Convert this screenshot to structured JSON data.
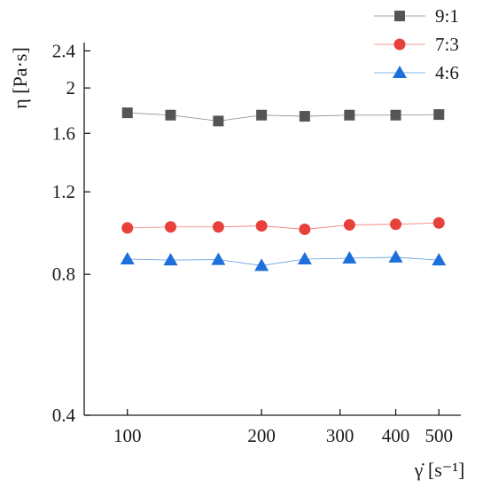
{
  "chart_data": {
    "type": "line",
    "x_scale": "log",
    "y_scale": "log",
    "x": [
      100,
      125,
      160,
      200,
      250,
      315,
      400,
      500
    ],
    "series": [
      {
        "name": "9:1",
        "marker": "square",
        "color": "#555555",
        "values": [
          1.77,
          1.75,
          1.7,
          1.75,
          1.74,
          1.75,
          1.75,
          1.755
        ]
      },
      {
        "name": "7:3",
        "marker": "circle",
        "color": "#e8413c",
        "values": [
          1.005,
          1.01,
          1.01,
          1.015,
          0.998,
          1.02,
          1.023,
          1.03
        ]
      },
      {
        "name": "4:6",
        "marker": "triangle",
        "color": "#1d6fd9",
        "values": [
          0.862,
          0.858,
          0.86,
          0.835,
          0.862,
          0.866,
          0.87,
          0.858
        ]
      }
    ],
    "ylim": [
      0.4,
      2.5
    ],
    "xlim": [
      80,
      560
    ],
    "y_ticks": [
      {
        "value": 0.4,
        "label": "0.4"
      },
      {
        "value": 0.8,
        "label": "0.8"
      },
      {
        "value": 1.2,
        "label": "1.2"
      },
      {
        "value": 1.6,
        "label": "1.6"
      },
      {
        "value": 2.0,
        "label": "2"
      },
      {
        "value": 2.4,
        "label": "2.4"
      }
    ],
    "x_ticks": [
      {
        "value": 100,
        "label": "100"
      },
      {
        "value": 200,
        "label": "200"
      },
      {
        "value": 300,
        "label": "300"
      },
      {
        "value": 400,
        "label": "400"
      },
      {
        "value": 500,
        "label": "500"
      }
    ],
    "xlabel": "γ̇ [s⁻¹]",
    "ylabel": "η [Pa·s]",
    "legend_position": "top-right",
    "grid": false
  }
}
